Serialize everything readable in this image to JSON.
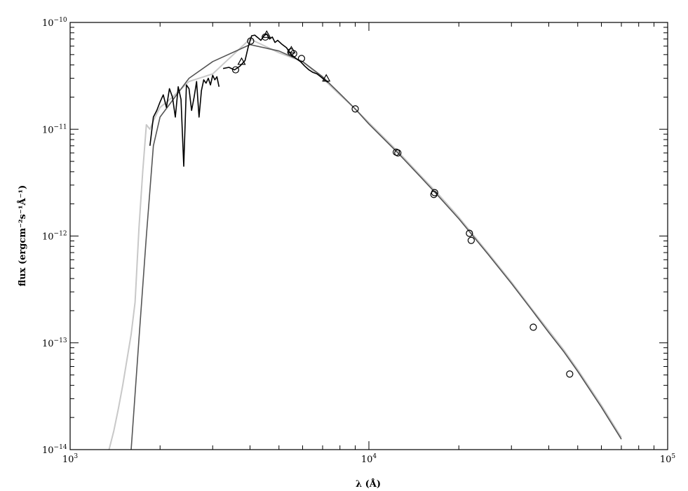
{
  "chart_data": {
    "type": "line",
    "title": "",
    "xlabel": "λ (Å)",
    "ylabel": "flux (ergcm⁻²s⁻¹Å⁻¹)",
    "x_scale": "log",
    "y_scale": "log",
    "xlim": [
      1000,
      100000
    ],
    "ylim": [
      1e-14,
      1e-10
    ],
    "x_ticks": [
      {
        "value": 1000,
        "base": "10",
        "exp": "3"
      },
      {
        "value": 10000,
        "base": "10",
        "exp": "4"
      },
      {
        "value": 100000,
        "base": "10",
        "exp": "5"
      }
    ],
    "y_ticks": [
      {
        "value": 1e-14,
        "base": "10",
        "exp": "−14"
      },
      {
        "value": 1e-13,
        "base": "10",
        "exp": "−13"
      },
      {
        "value": 1e-12,
        "base": "10",
        "exp": "−12"
      },
      {
        "value": 1e-11,
        "base": "10",
        "exp": "−11"
      },
      {
        "value": 1e-10,
        "base": "10",
        "exp": "−10"
      }
    ],
    "series": [
      {
        "style": "light-gray model spectrum",
        "color": "#c8c8c8",
        "x": [
          1350,
          1400,
          1450,
          1500,
          1550,
          1600,
          1650,
          1700,
          1750,
          1800,
          1850,
          1900,
          1950,
          2000,
          2200,
          2500,
          3000,
          4000,
          5000,
          6000,
          7000,
          8000,
          9000,
          10000,
          12500,
          15000,
          17000,
          20000,
          25000,
          30000,
          35000,
          40000,
          45000,
          50000,
          60000,
          70000
        ],
        "y": [
          1e-14,
          1.5e-14,
          2.4e-14,
          4e-14,
          7e-14,
          1.2e-13,
          2.4e-13,
          1.2e-12,
          4e-12,
          1.1e-11,
          1e-11,
          1.2e-11,
          1.4e-11,
          1.6e-11,
          2e-11,
          2.8e-11,
          3.3e-11,
          7e-11,
          5.2e-11,
          4.3e-11,
          3e-11,
          2.1e-11,
          1.55e-11,
          1.15e-11,
          6.2e-12,
          3.6e-12,
          2.5e-12,
          1.5e-12,
          7e-13,
          3.7e-13,
          2.1e-13,
          1.3e-13,
          8.5e-14,
          5.6e-14,
          2.6e-14,
          1.3e-14
        ]
      },
      {
        "style": "dark-gray blackbody",
        "color": "#555555",
        "x": [
          1600,
          1700,
          1800,
          1900,
          2000,
          2500,
          3000,
          4000,
          5000,
          6000,
          7000,
          8000,
          9000,
          10000,
          12500,
          15000,
          17000,
          20000,
          25000,
          30000,
          35000,
          40000,
          45000,
          50000,
          60000,
          70000
        ],
        "y": [
          1e-14,
          1.1e-13,
          1e-12,
          7e-12,
          1.3e-11,
          3e-11,
          4.3e-11,
          6.2e-11,
          5.4e-11,
          4.3e-11,
          3.1e-11,
          2.15e-11,
          1.55e-11,
          1.12e-11,
          6e-12,
          3.5e-12,
          2.4e-12,
          1.45e-12,
          6.8e-13,
          3.6e-13,
          2.05e-13,
          1.25e-13,
          8.2e-14,
          5.4e-14,
          2.5e-14,
          1.25e-14
        ]
      },
      {
        "style": "black observed UV spectrum",
        "color": "#000000",
        "x": [
          1850,
          1900,
          1950,
          2000,
          2050,
          2100,
          2150,
          2200,
          2250,
          2300,
          2350,
          2400,
          2450,
          2500,
          2550,
          2600,
          2650,
          2700,
          2750,
          2800,
          2850,
          2900,
          2950,
          3000,
          3050,
          3100,
          3150
        ],
        "y": [
          7e-12,
          1.3e-11,
          1.5e-11,
          1.8e-11,
          2.1e-11,
          1.6e-11,
          2.4e-11,
          2e-11,
          1.3e-11,
          2.5e-11,
          1.9e-11,
          4.5e-12,
          2.6e-11,
          2.4e-11,
          1.5e-11,
          2e-11,
          2.8e-11,
          1.3e-11,
          2.3e-11,
          2.9e-11,
          2.7e-11,
          3e-11,
          2.6e-11,
          3.2e-11,
          2.9e-11,
          3.1e-11,
          2.5e-11
        ]
      },
      {
        "style": "black observed optical spectrum",
        "color": "#000000",
        "x": [
          3250,
          3400,
          3550,
          3700,
          3850,
          3950,
          4050,
          4150,
          4250,
          4350,
          4450,
          4550,
          4650,
          4750,
          4850,
          4950,
          5100,
          5300,
          5500,
          5700,
          5900,
          6100,
          6300,
          6500,
          6700,
          6900,
          7100,
          7300
        ],
        "y": [
          3.7e-11,
          3.8e-11,
          3.6e-11,
          3.9e-11,
          4.4e-11,
          6e-11,
          7.5e-11,
          7.6e-11,
          7.2e-11,
          6.8e-11,
          7.5e-11,
          7.8e-11,
          7e-11,
          7.3e-11,
          6.5e-11,
          6.8e-11,
          6.3e-11,
          5.8e-11,
          5e-11,
          4.6e-11,
          4.3e-11,
          3.9e-11,
          3.6e-11,
          3.4e-11,
          3.3e-11,
          3.1e-11,
          2.9e-11,
          2.75e-11
        ]
      }
    ],
    "photometry_circles": {
      "marker": "circle",
      "points": [
        {
          "x": 3580,
          "y": 3.6e-11
        },
        {
          "x": 4020,
          "y": 6.7e-11
        },
        {
          "x": 4500,
          "y": 7.3e-11
        },
        {
          "x": 5480,
          "y": 5.3e-11
        },
        {
          "x": 5600,
          "y": 5.1e-11
        },
        {
          "x": 5950,
          "y": 4.6e-11
        },
        {
          "x": 9000,
          "y": 1.55e-11
        },
        {
          "x": 12350,
          "y": 6.1e-12
        },
        {
          "x": 12500,
          "y": 6e-12
        },
        {
          "x": 16500,
          "y": 2.45e-12
        },
        {
          "x": 16600,
          "y": 2.55e-12
        },
        {
          "x": 21700,
          "y": 1.06e-12
        },
        {
          "x": 22000,
          "y": 9.1e-13
        },
        {
          "x": 35500,
          "y": 1.4e-13
        },
        {
          "x": 47000,
          "y": 5.1e-14
        }
      ]
    },
    "photometry_triangles": {
      "marker": "triangle",
      "points": [
        {
          "x": 3750,
          "y": 4.3e-11
        },
        {
          "x": 4550,
          "y": 7.7e-11
        },
        {
          "x": 5500,
          "y": 5.5e-11
        },
        {
          "x": 7200,
          "y": 3e-11
        }
      ]
    },
    "grid": false,
    "legend": "none"
  }
}
